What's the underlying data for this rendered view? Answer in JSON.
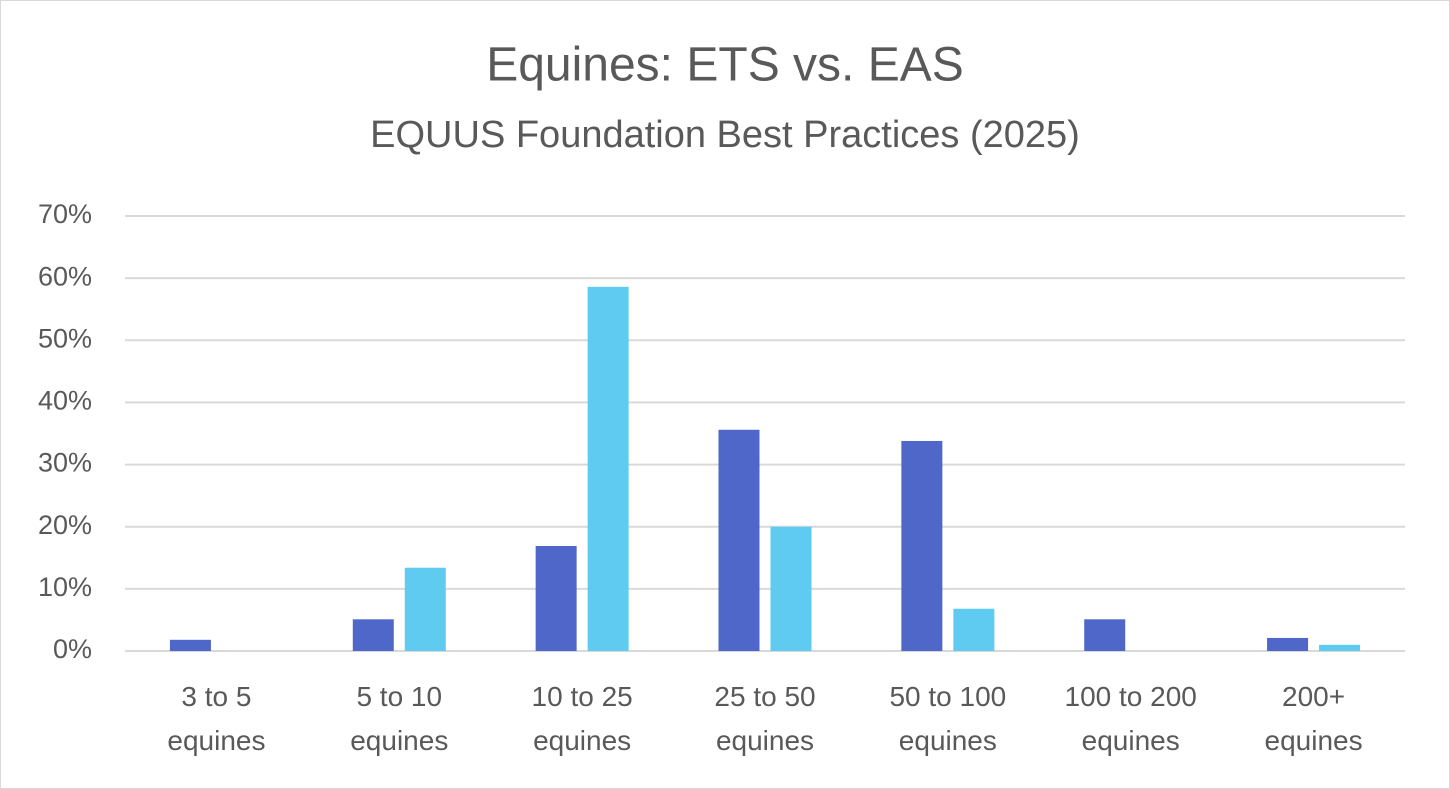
{
  "chart_data": {
    "type": "bar",
    "title": "Equines: ETS vs. EAS",
    "subtitle": "EQUUS Foundation Best Practices (2025)",
    "categories": [
      "3 to 5 equines",
      "5 to 10 equines",
      "10 to 25 equines",
      "25 to 50 equines",
      "50 to 100 equines",
      "100 to 200 equines",
      "200+ equines"
    ],
    "series": [
      {
        "color": "#4f67c8",
        "values": [
          1.8,
          5.1,
          16.9,
          35.6,
          33.8,
          5.1,
          2.1
        ]
      },
      {
        "color": "#5fcbf0",
        "values": [
          0,
          13.4,
          58.6,
          20.0,
          6.8,
          0,
          1.0
        ]
      }
    ],
    "ylim": [
      0,
      70
    ],
    "yticks": [
      {
        "value": 0,
        "label": "0%"
      },
      {
        "value": 10,
        "label": "10%"
      },
      {
        "value": 20,
        "label": "20%"
      },
      {
        "value": 30,
        "label": "30%"
      },
      {
        "value": 40,
        "label": "40%"
      },
      {
        "value": 50,
        "label": "50%"
      },
      {
        "value": 60,
        "label": "60%"
      },
      {
        "value": 70,
        "label": "70%"
      }
    ],
    "grid": true
  }
}
